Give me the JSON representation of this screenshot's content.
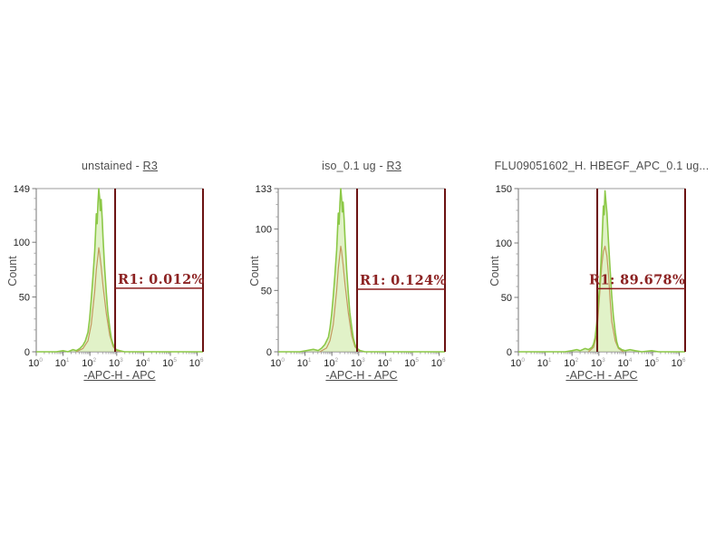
{
  "colors": {
    "background": "#ffffff",
    "histogram_stroke": "#8cc847",
    "histogram_fill": "#cde9a4",
    "overlay_stroke": "#c49a5f",
    "gate_line": "#6b1111",
    "gate_hline": "#8c1f1f",
    "gate_text": "#8c2222",
    "plot_border": "#9b9b9b",
    "axis": "#777777",
    "minor_tick": "#a5a5a5",
    "tick_text": "#222222",
    "superscript_text": "#9a9a9a",
    "title_text": "#4e4e4e"
  },
  "x_axis": {
    "tick_base": "10",
    "tick_exponents": [
      0,
      1,
      2,
      3,
      4,
      5,
      6
    ],
    "scale": "log10",
    "decade_span": 6.216
  },
  "chart_data": [
    {
      "type": "histogram",
      "title_prefix": "unstained - ",
      "title_gate": "R3",
      "xlabel": "-APC-H -  APC",
      "ylabel": "Count",
      "ylim": [
        0,
        149
      ],
      "y_ticks": [
        0,
        50,
        100,
        149
      ],
      "gate": {
        "name": "R1",
        "label": "R1: 0.012%",
        "percent": 0.012,
        "left_decade": 2.94,
        "right_decade": 6.216,
        "line_count": 58,
        "label_dx": 3
      },
      "series": [
        {
          "name": "sample",
          "points": [
            [
              0,
              0
            ],
            [
              0.75,
              0
            ],
            [
              1.0,
              1
            ],
            [
              1.18,
              0
            ],
            [
              1.37,
              2
            ],
            [
              1.49,
              1
            ],
            [
              1.62,
              3
            ],
            [
              1.74,
              6
            ],
            [
              1.83,
              10
            ],
            [
              1.93,
              18
            ],
            [
              1.99,
              30
            ],
            [
              2.05,
              48
            ],
            [
              2.11,
              68
            ],
            [
              2.18,
              92
            ],
            [
              2.21,
              108
            ],
            [
              2.24,
              126
            ],
            [
              2.27,
              117
            ],
            [
              2.3,
              136
            ],
            [
              2.33,
              149
            ],
            [
              2.36,
              141
            ],
            [
              2.39,
              129
            ],
            [
              2.42,
              139
            ],
            [
              2.46,
              121
            ],
            [
              2.49,
              104
            ],
            [
              2.55,
              76
            ],
            [
              2.61,
              54
            ],
            [
              2.67,
              36
            ],
            [
              2.74,
              22
            ],
            [
              2.8,
              12
            ],
            [
              2.86,
              7
            ],
            [
              2.92,
              4
            ],
            [
              2.98,
              2
            ],
            [
              3.11,
              1
            ],
            [
              3.29,
              0
            ],
            [
              4.35,
              0
            ],
            [
              6.216,
              0
            ]
          ]
        },
        {
          "name": "overlay",
          "points": [
            [
              1.49,
              0
            ],
            [
              1.74,
              3
            ],
            [
              1.93,
              10
            ],
            [
              2.05,
              25
            ],
            [
              2.18,
              55
            ],
            [
              2.24,
              75
            ],
            [
              2.3,
              88
            ],
            [
              2.33,
              95
            ],
            [
              2.36,
              90
            ],
            [
              2.42,
              78
            ],
            [
              2.49,
              60
            ],
            [
              2.61,
              35
            ],
            [
              2.74,
              15
            ],
            [
              2.86,
              5
            ],
            [
              2.98,
              1
            ],
            [
              3.23,
              0
            ]
          ]
        }
      ]
    },
    {
      "type": "histogram",
      "title_prefix": "iso_0.1 ug - ",
      "title_gate": "R3",
      "xlabel": "-APC-H -  APC",
      "ylabel": "Count",
      "ylim": [
        0,
        133
      ],
      "y_ticks": [
        0,
        50,
        100,
        133
      ],
      "gate": {
        "name": "R1",
        "label": "R1: 0.124%",
        "percent": 0.124,
        "left_decade": 2.94,
        "right_decade": 6.216,
        "line_count": 51,
        "label_dx": 3
      },
      "series": [
        {
          "name": "sample",
          "points": [
            [
              0,
              0
            ],
            [
              0.8,
              0
            ],
            [
              1.06,
              1
            ],
            [
              1.31,
              2
            ],
            [
              1.49,
              1
            ],
            [
              1.62,
              3
            ],
            [
              1.74,
              6
            ],
            [
              1.87,
              12
            ],
            [
              1.93,
              19
            ],
            [
              1.99,
              30
            ],
            [
              2.05,
              45
            ],
            [
              2.11,
              62
            ],
            [
              2.18,
              83
            ],
            [
              2.21,
              98
            ],
            [
              2.24,
              113
            ],
            [
              2.27,
              104
            ],
            [
              2.3,
              121
            ],
            [
              2.33,
              133
            ],
            [
              2.36,
              125
            ],
            [
              2.39,
              114
            ],
            [
              2.42,
              122
            ],
            [
              2.46,
              107
            ],
            [
              2.49,
              93
            ],
            [
              2.55,
              67
            ],
            [
              2.61,
              48
            ],
            [
              2.67,
              32
            ],
            [
              2.74,
              20
            ],
            [
              2.8,
              11
            ],
            [
              2.86,
              6
            ],
            [
              2.92,
              3
            ],
            [
              3.05,
              1
            ],
            [
              3.23,
              0
            ],
            [
              4.35,
              0
            ],
            [
              6.216,
              0
            ]
          ]
        },
        {
          "name": "overlay",
          "points": [
            [
              1.55,
              0
            ],
            [
              1.8,
              3
            ],
            [
              1.93,
              9
            ],
            [
              2.05,
              22
            ],
            [
              2.18,
              50
            ],
            [
              2.24,
              68
            ],
            [
              2.3,
              80
            ],
            [
              2.33,
              86
            ],
            [
              2.36,
              82
            ],
            [
              2.42,
              71
            ],
            [
              2.49,
              55
            ],
            [
              2.61,
              32
            ],
            [
              2.74,
              13
            ],
            [
              2.86,
              4
            ],
            [
              3.05,
              0
            ]
          ]
        }
      ]
    },
    {
      "type": "histogram",
      "title_prefix": "FLU09051602_H. HBEGF_APC_0.1 ug...",
      "title_gate": "",
      "xlabel": "-APC-H -  APC",
      "ylabel": "Count",
      "ylim": [
        0,
        150
      ],
      "y_ticks": [
        0,
        50,
        100,
        150
      ],
      "gate": {
        "name": "R1",
        "label": "R1: 89.678%",
        "percent": 89.678,
        "left_decade": 2.94,
        "right_decade": 6.216,
        "line_count": 58,
        "label_dx": -9
      },
      "series": [
        {
          "name": "sample",
          "points": [
            [
              0,
              0
            ],
            [
              1.74,
              0
            ],
            [
              1.99,
              1
            ],
            [
              2.18,
              2
            ],
            [
              2.3,
              1
            ],
            [
              2.49,
              3
            ],
            [
              2.61,
              2
            ],
            [
              2.74,
              4
            ],
            [
              2.8,
              7
            ],
            [
              2.86,
              13
            ],
            [
              2.92,
              26
            ],
            [
              2.98,
              44
            ],
            [
              3.05,
              68
            ],
            [
              3.11,
              98
            ],
            [
              3.14,
              115
            ],
            [
              3.17,
              134
            ],
            [
              3.2,
              126
            ],
            [
              3.23,
              148
            ],
            [
              3.26,
              139
            ],
            [
              3.3,
              128
            ],
            [
              3.36,
              100
            ],
            [
              3.42,
              76
            ],
            [
              3.48,
              52
            ],
            [
              3.54,
              33
            ],
            [
              3.61,
              18
            ],
            [
              3.67,
              9
            ],
            [
              3.73,
              4
            ],
            [
              3.85,
              2
            ],
            [
              3.98,
              1
            ],
            [
              4.16,
              2
            ],
            [
              4.35,
              1
            ],
            [
              4.6,
              0
            ],
            [
              4.97,
              1
            ],
            [
              5.22,
              0
            ],
            [
              6.216,
              0
            ]
          ]
        },
        {
          "name": "overlay",
          "points": [
            [
              2.61,
              0
            ],
            [
              2.8,
              4
            ],
            [
              2.92,
              15
            ],
            [
              2.98,
              35
            ],
            [
              3.05,
              60
            ],
            [
              3.11,
              80
            ],
            [
              3.17,
              92
            ],
            [
              3.23,
              97
            ],
            [
              3.3,
              88
            ],
            [
              3.36,
              70
            ],
            [
              3.42,
              48
            ],
            [
              3.48,
              28
            ],
            [
              3.61,
              10
            ],
            [
              3.73,
              3
            ],
            [
              3.92,
              0
            ]
          ]
        }
      ]
    }
  ]
}
